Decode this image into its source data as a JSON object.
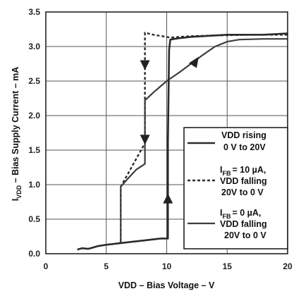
{
  "chart_data": {
    "type": "line",
    "xlabel": "VDD – Bias Voltage –  V",
    "ylabel_main": "I",
    "ylabel_sub": "VDD",
    "ylabel_rest": " – Bias Supply Current – mA",
    "xlim": [
      0,
      20
    ],
    "ylim": [
      0,
      3.5
    ],
    "x_ticks": [
      "0",
      "5",
      "10",
      "15",
      "20"
    ],
    "y_ticks": [
      "0.0",
      "0.5",
      "1.0",
      "1.5",
      "2.0",
      "2.5",
      "3.0",
      "3.5"
    ],
    "grid": true,
    "legend_position": "right-bottom",
    "series": [
      {
        "legend_lines": [
          "VDD rising",
          "0 V to 20V"
        ],
        "style": "solid",
        "x": [
          2.6,
          3.0,
          3.5,
          3.9,
          4.3,
          5.0,
          6.0,
          7.0,
          8.0,
          9.0,
          9.5,
          10.0,
          10.1,
          10.1,
          10.2,
          10.3,
          11.0,
          12.0,
          13.0,
          14.0,
          15.0,
          16.0,
          17.0,
          18.0,
          19.0,
          20.0
        ],
        "y": [
          0.06,
          0.08,
          0.07,
          0.09,
          0.11,
          0.13,
          0.15,
          0.17,
          0.19,
          0.21,
          0.22,
          0.22,
          0.22,
          1.6,
          2.95,
          3.1,
          3.12,
          3.14,
          3.15,
          3.16,
          3.17,
          3.17,
          3.17,
          3.17,
          3.18,
          3.19
        ]
      },
      {
        "legend_lines": [
          "I",
          "FB",
          "= 10 µA,",
          "VDD falling",
          "20V to 0 V"
        ],
        "style": "dashed",
        "x": [
          20.0,
          17.0,
          14.0,
          12.0,
          10.3,
          8.9,
          8.2,
          8.2,
          8.2,
          6.2,
          6.2,
          6.0
        ],
        "y": [
          3.17,
          3.17,
          3.16,
          3.15,
          3.13,
          3.17,
          3.2,
          2.6,
          1.6,
          0.97,
          0.16,
          0.15
        ]
      },
      {
        "legend_lines": [
          "I",
          "FB",
          "= 0 µA,",
          "VDD falling",
          "20V to 0 V"
        ],
        "style": "solid",
        "x": [
          20.0,
          18.0,
          16.0,
          15.0,
          14.0,
          13.0,
          12.0,
          11.0,
          10.0,
          9.0,
          8.2,
          8.2,
          7.5,
          6.8,
          6.2,
          6.2,
          6.0
        ],
        "y": [
          3.11,
          3.11,
          3.1,
          3.07,
          3.0,
          2.88,
          2.75,
          2.62,
          2.5,
          2.35,
          2.22,
          1.3,
          1.22,
          1.09,
          0.97,
          0.16,
          0.15
        ]
      }
    ]
  }
}
